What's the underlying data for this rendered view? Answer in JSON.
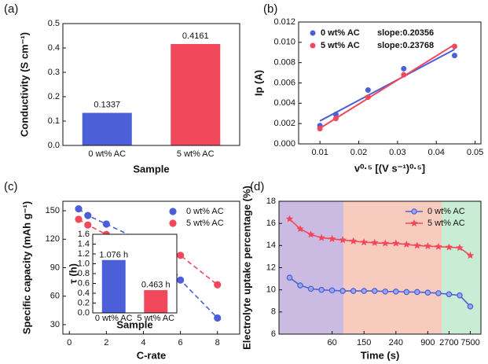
{
  "chart_data": [
    {
      "type": "bar",
      "panel_label": "(a)",
      "categories": [
        "0 wt% AC",
        "5 wt% AC"
      ],
      "values": [
        0.1337,
        0.4161
      ],
      "colors": [
        "#4b5fd8",
        "#f2485b"
      ],
      "xlabel": "Sample",
      "ylabel": "Conductivity (S cm⁻¹)",
      "ylim": [
        0,
        0.5
      ],
      "yticks": [
        {
          "value": 0,
          "label": "0.0"
        },
        0.1,
        0.2,
        0.3,
        0.4,
        0.5
      ]
    },
    {
      "type": "scatter",
      "panel_label": "(b)",
      "xlabel": "v⁰·⁵ [(V s⁻¹)⁰·⁵]",
      "ylabel": "Ip (A)",
      "xlim": [
        0.0045,
        0.0515
      ],
      "xticks": [
        0.01,
        0.02,
        0.03,
        0.04,
        0.05
      ],
      "ylim": [
        0,
        0.012
      ],
      "yticks": [
        {
          "value": 0,
          "label": "0.000"
        },
        0.002,
        0.004,
        0.006,
        0.008,
        {
          "value": 0.01,
          "label": "0.010"
        },
        0.012
      ],
      "legend": "upper left",
      "series": [
        {
          "name": "0 wt% AC",
          "color": "#4b5fd8",
          "x": [
            0.01,
            0.0141,
            0.0224,
            0.0316,
            0.0447
          ],
          "values": [
            0.0018,
            0.0029,
            0.0053,
            0.0074,
            0.0087
          ],
          "slope": "slope:0.20356",
          "fit": {
            "x": [
              0.01,
              0.0447
            ],
            "y": [
              0.00226,
              0.0093
            ]
          }
        },
        {
          "name": "5 wt% AC",
          "color": "#f2485b",
          "x": [
            0.01,
            0.0141,
            0.0224,
            0.0316,
            0.0447
          ],
          "values": [
            0.0015,
            0.0025,
            0.0046,
            0.0068,
            0.0096
          ],
          "slope": "slope:0.23768",
          "fit": {
            "x": [
              0.01,
              0.0447
            ],
            "y": [
              0.00154,
              0.00978
            ]
          }
        }
      ]
    },
    {
      "type": "line",
      "panel_label": "(c)",
      "xlabel": "C-rate",
      "ylabel": "Specific capacity (mAh g⁻¹)",
      "xlim": [
        -0.35,
        9.2
      ],
      "xticks": [
        0,
        2,
        4,
        6,
        8
      ],
      "ylim": [
        20,
        160
      ],
      "yticks": [
        30,
        60,
        90,
        120,
        150
      ],
      "legend": "upper right",
      "dashed": true,
      "series": [
        {
          "name": "0 wt% AC",
          "color": "#4b5fd8",
          "marker": "circle",
          "x": [
            0.5,
            1,
            2,
            5,
            6,
            8
          ],
          "values": [
            152,
            145,
            136,
            108,
            77,
            37
          ]
        },
        {
          "name": "5 wt% AC",
          "color": "#f2485b",
          "marker": "circle",
          "x": [
            0.5,
            1,
            2,
            5,
            6,
            8
          ],
          "values": [
            141,
            135,
            125,
            110,
            103,
            72
          ]
        }
      ]
    },
    {
      "type": "bar",
      "categories": [
        "0 wt% AC",
        "5 wt% AC"
      ],
      "values": [
        1.076,
        0.463
      ],
      "value_labels": [
        "1.076 h",
        "0.463 h"
      ],
      "colors": [
        "#4b5fd8",
        "#f2485b"
      ],
      "xlabel": "Sample",
      "ylabel": "τ (h)",
      "ylim": [
        0,
        1.6
      ],
      "yticks": [
        {
          "value": 0,
          "label": "0.0"
        },
        0.2,
        0.4,
        0.6,
        0.8,
        {
          "value": 1,
          "label": "1.0"
        },
        1.2,
        1.4,
        1.6
      ]
    },
    {
      "type": "line",
      "panel_label": "(d)",
      "xlabel": "Time (s)",
      "ylabel": "Electrolyte uptake percentage (%)",
      "categories": [
        null,
        null,
        null,
        null,
        "60",
        null,
        null,
        "150",
        null,
        null,
        "240",
        null,
        null,
        "900",
        null,
        "2700",
        null,
        "7500"
      ],
      "ylim": [
        6,
        18
      ],
      "yticks": [
        6,
        8,
        10,
        12,
        14,
        16,
        18
      ],
      "legend": "upper right",
      "series": [
        {
          "name": "0 wt% AC",
          "color": "#4b5fd8",
          "marker": "circle",
          "values": [
            11.1,
            10.4,
            10.1,
            10.0,
            9.95,
            9.9,
            9.9,
            9.9,
            9.9,
            9.85,
            9.85,
            9.8,
            9.8,
            9.75,
            9.7,
            9.6,
            9.5,
            8.5
          ]
        },
        {
          "name": "5 wt% AC",
          "color": "#f2485b",
          "marker": "star",
          "values": [
            16.4,
            15.5,
            15.0,
            14.7,
            14.6,
            14.5,
            14.4,
            14.3,
            14.25,
            14.2,
            14.2,
            14.1,
            14.0,
            13.95,
            13.9,
            13.85,
            13.8,
            13.1
          ]
        }
      ]
    }
  ]
}
